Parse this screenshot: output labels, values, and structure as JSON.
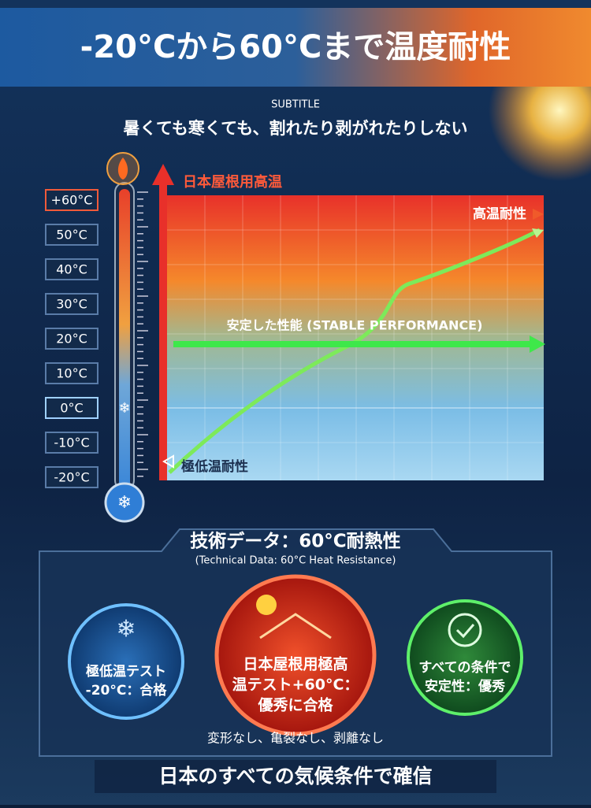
{
  "header": {
    "title": "-20°Cから60°Cまで温度耐性",
    "label": "SUBTITLE",
    "subtitle": "暑くても寒くても、割れたり剥がれたりしない"
  },
  "thermometer": {
    "labels": [
      "+60°C",
      "50°C",
      "40°C",
      "30°C",
      "20°C",
      "10°C",
      "0°C",
      "-10°C",
      "-20°C"
    ]
  },
  "graph": {
    "top_label": "日本屋根用高温",
    "high_label": "高温耐性",
    "stable_label": "安定した性能 (STABLE PERFORMANCE)",
    "low_label": "極低温耐性"
  },
  "panel": {
    "title": "技術データ：60°C耐熱性",
    "subtitle": "(Technical Data: 60°C Heat Resistance)",
    "circles": [
      {
        "lines": [
          "極低温テスト",
          "-20°C：合格"
        ]
      },
      {
        "lines": [
          "日本屋根用極高",
          "温テスト+60°C：",
          "優秀に合格"
        ]
      },
      {
        "lines": [
          "すべての条件で",
          "安定性：優秀"
        ]
      }
    ],
    "note": "変形なし、亀裂なし、剥離なし"
  },
  "footer": {
    "text": "日本のすべての気候条件で確信"
  }
}
